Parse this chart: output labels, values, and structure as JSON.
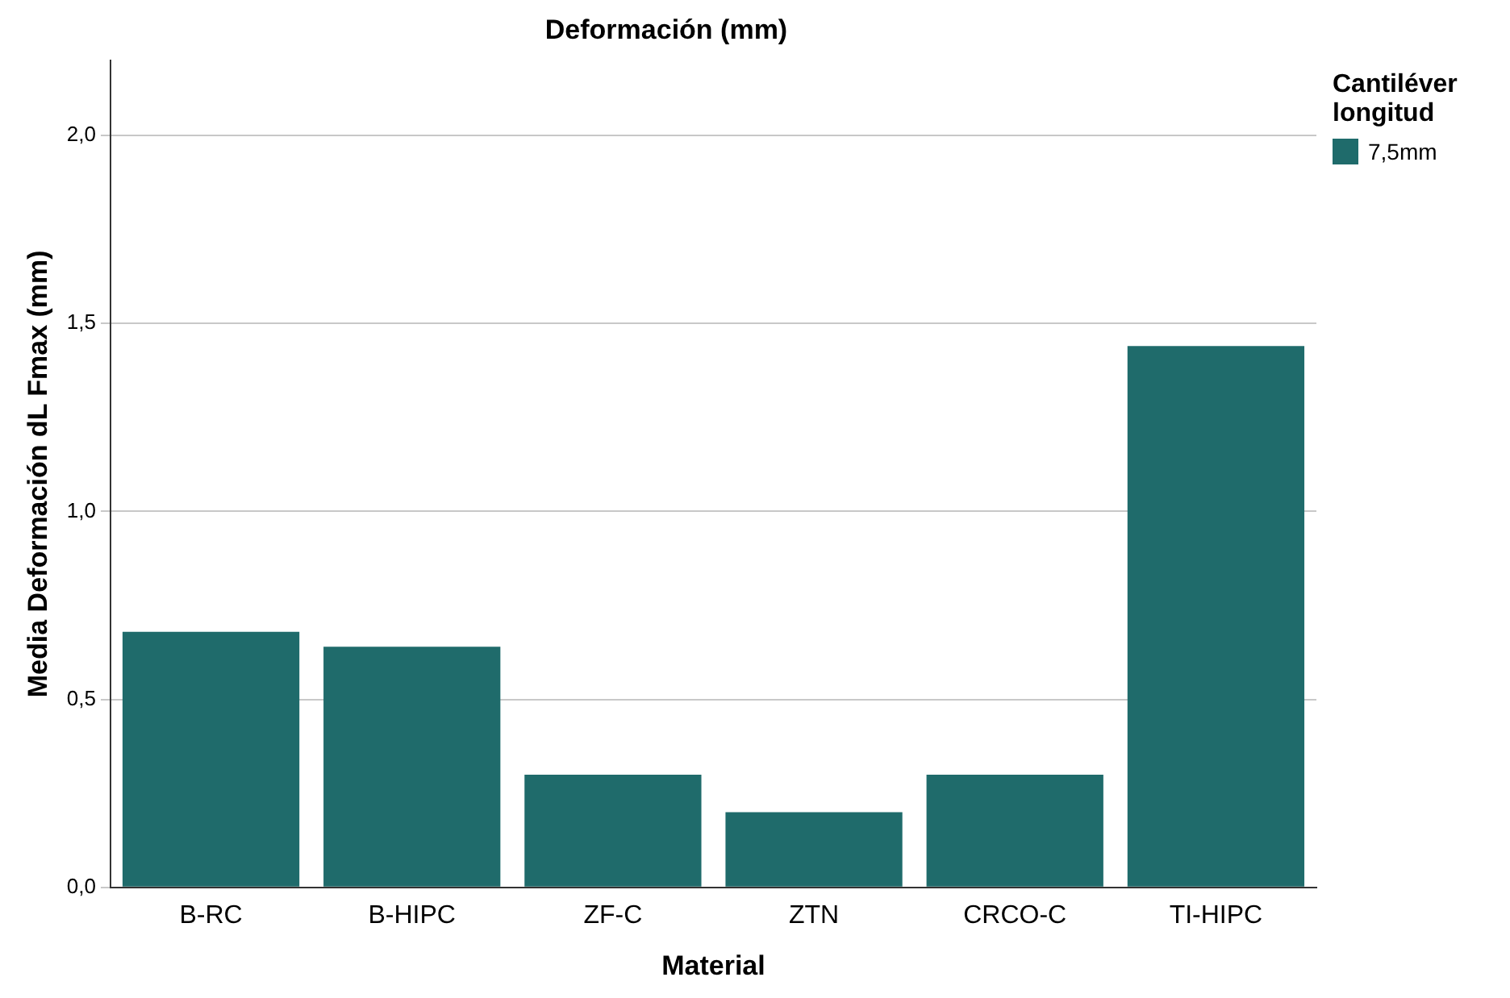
{
  "chart_data": {
    "type": "bar",
    "title": "Deformación (mm)",
    "xlabel": "Material",
    "ylabel": "Media Deformación dL Fmax (mm)",
    "legend_title": "Cantiléver longitud",
    "categories": [
      "B-RC",
      "B-HIPC",
      "ZF-C",
      "ZTN",
      "CRCO-C",
      "TI-HIPC"
    ],
    "series": [
      {
        "name": "7,5mm",
        "color": "#1f6b6b",
        "values": [
          0.68,
          0.64,
          0.3,
          0.2,
          0.3,
          1.44
        ]
      }
    ],
    "ylim": [
      0,
      2.2
    ],
    "yticks": [
      {
        "value": 0,
        "label": "0,0"
      },
      {
        "value": 0.5,
        "label": "0,5"
      },
      {
        "value": 1,
        "label": "1,0"
      },
      {
        "value": 1.5,
        "label": "1,5"
      },
      {
        "value": 2,
        "label": "2,0"
      }
    ],
    "grid": "y",
    "legend": "top right"
  }
}
